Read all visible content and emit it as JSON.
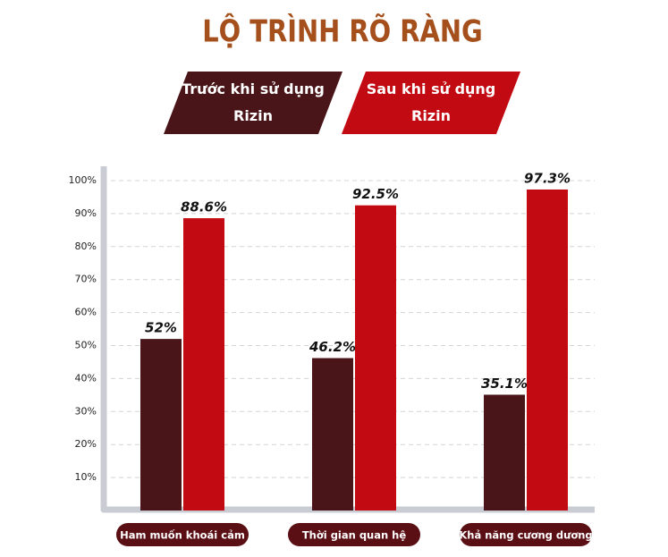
{
  "chart_data": {
    "type": "bar",
    "title": "LỘ TRÌNH RÕ RÀNG",
    "categories": [
      "Ham muốn khoái cảm",
      "Thời gian quan hệ",
      "Khả năng cương dương"
    ],
    "series": [
      {
        "name": "Trước khi sử dụng Rizin",
        "color": "#4a1518",
        "values": [
          52,
          46.2,
          35.1
        ],
        "value_labels": [
          "52%",
          "46.2%",
          "35.1%"
        ]
      },
      {
        "name": "Sau khi sử dụng Rizin",
        "color": "#c20a12",
        "values": [
          88.6,
          92.5,
          97.3
        ],
        "value_labels": [
          "88.6%",
          "92.5%",
          "97.3%"
        ]
      }
    ],
    "ylim": [
      0,
      100
    ],
    "yticks": [
      {
        "value": 10,
        "label": "10%"
      },
      {
        "value": 20,
        "label": "20%"
      },
      {
        "value": 30,
        "label": "30%"
      },
      {
        "value": 40,
        "label": "40%"
      },
      {
        "value": 50,
        "label": "50%"
      },
      {
        "value": 60,
        "label": "60%"
      },
      {
        "value": 70,
        "label": "70%"
      },
      {
        "value": 80,
        "label": "80%"
      },
      {
        "value": 90,
        "label": "90%"
      },
      {
        "value": 100,
        "label": "100%"
      }
    ],
    "grid": true
  }
}
